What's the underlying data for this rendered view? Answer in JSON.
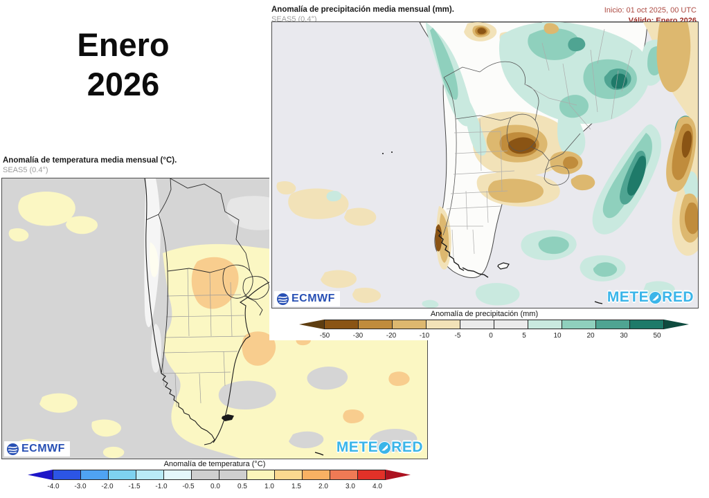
{
  "month_title": {
    "line1": "Enero",
    "line2": "2026"
  },
  "precipitation_panel": {
    "title": "Anomalía de precipitación media mensual (mm).",
    "subtitle": "SEAS5 (0.4°)",
    "run_info": {
      "init": "Inicio: 01 oct 2025, 00 UTC",
      "valid": "Válido: Enero 2026"
    },
    "logos": {
      "ecmwf": "ECMWF",
      "meteored_prefix": "METE",
      "meteored_suffix": "RED"
    },
    "colorbar": {
      "label": "Anomalía de precipitación (mm)",
      "ticks": [
        "-50",
        "-30",
        "-20",
        "-10",
        "-5",
        "0",
        "5",
        "10",
        "20",
        "30",
        "50"
      ],
      "segment_colors": [
        "#8a5414",
        "#c08c3c",
        "#ddb86f",
        "#f2e2b8",
        "#ebebeb",
        "#ebebeb",
        "#c9e9df",
        "#8fd0bd",
        "#4fa492",
        "#1e7a69"
      ],
      "left_arrow_color": "#5e3d10",
      "right_arrow_color": "#0f4b3f"
    }
  },
  "temperature_panel": {
    "title": "Anomalía de temperatura media mensual (°C).",
    "subtitle": "SEAS5 (0.4°)",
    "logos": {
      "ecmwf": "ECMWF",
      "meteored_prefix": "METE",
      "meteored_suffix": "RED"
    },
    "colorbar": {
      "label": "Anomalía de temperatura (°C)",
      "ticks": [
        "-4.0",
        "-3.0",
        "-2.0",
        "-1.5",
        "-1.0",
        "-0.5",
        "0.0",
        "0.5",
        "1.0",
        "1.5",
        "2.0",
        "3.0",
        "4.0"
      ],
      "segment_colors": [
        "#2c55e5",
        "#4fa3f2",
        "#7ed2f0",
        "#b9ebf7",
        "#e4f7fb",
        "#cfcfcf",
        "#cfcfcf",
        "#fcf6ba",
        "#fbd98f",
        "#f8b163",
        "#ef7a55",
        "#e23128"
      ],
      "left_arrow_color": "#1d16c8",
      "right_arrow_color": "#ac1220"
    }
  },
  "map_colors": {
    "precip_ocean": "#e9e9ee",
    "precip_land": "#fcfcfa",
    "temp_background": "#d5d5d5",
    "anomaly_teal_light": "#c9e9df",
    "anomaly_teal_dark": "#1e7a69",
    "anomaly_brown_dark": "#8a5414",
    "anomaly_yellow": "#fbf7c3",
    "anomaly_orange": "#f8cd8e",
    "ecmwf_blue": "#2850b4",
    "meteored_cyan": "#3ab5e9",
    "init_text": "#ad4a42",
    "valid_text": "#9e2b24"
  }
}
